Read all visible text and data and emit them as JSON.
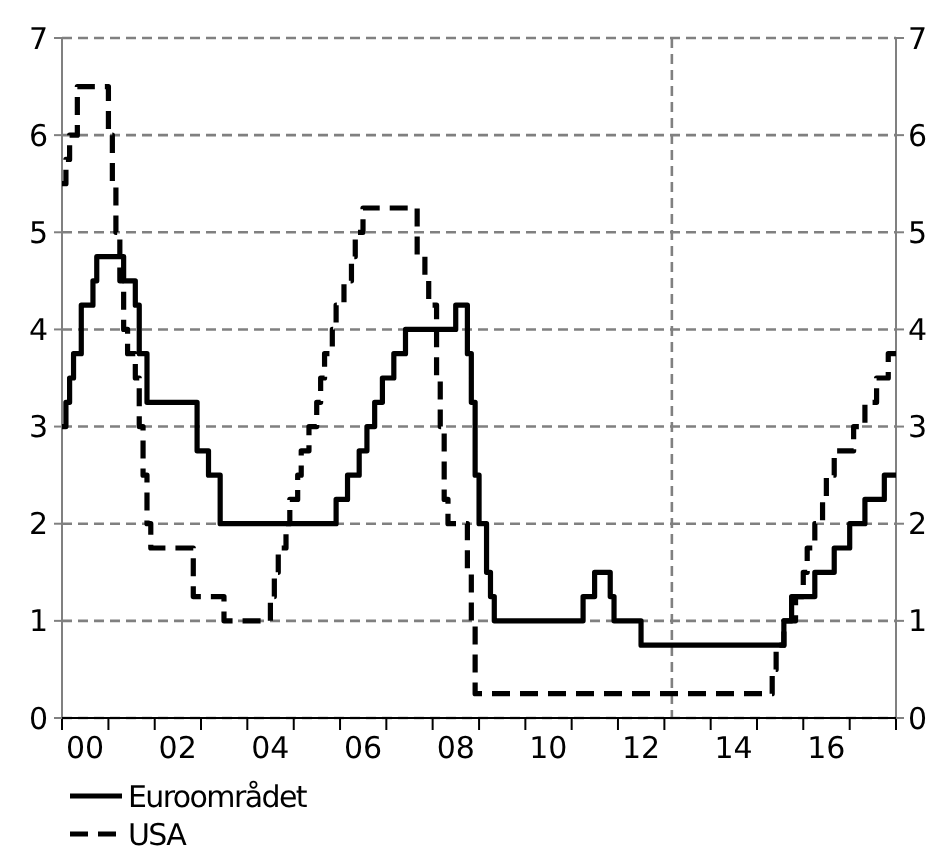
{
  "chart_data": {
    "type": "step",
    "xlim": [
      "2000-01-01",
      "2018-01-01"
    ],
    "xticks": [
      {
        "value": "2000-01-01",
        "label": null
      },
      {
        "value": "2000-07-01",
        "label": "00"
      },
      {
        "value": "2001-01-01",
        "label": null
      },
      {
        "value": "2002-01-01",
        "label": null
      },
      {
        "value": "2002-07-01",
        "label": "02"
      },
      {
        "value": "2003-01-01",
        "label": null
      },
      {
        "value": "2004-01-01",
        "label": null
      },
      {
        "value": "2004-07-01",
        "label": "04"
      },
      {
        "value": "2005-01-01",
        "label": null
      },
      {
        "value": "2006-01-01",
        "label": null
      },
      {
        "value": "2006-07-01",
        "label": "06"
      },
      {
        "value": "2007-01-01",
        "label": null
      },
      {
        "value": "2008-01-01",
        "label": null
      },
      {
        "value": "2008-07-01",
        "label": "08"
      },
      {
        "value": "2009-01-01",
        "label": null
      },
      {
        "value": "2010-01-01",
        "label": null
      },
      {
        "value": "2010-07-01",
        "label": "10"
      },
      {
        "value": "2011-01-01",
        "label": null
      },
      {
        "value": "2012-01-01",
        "label": null
      },
      {
        "value": "2012-07-01",
        "label": "12"
      },
      {
        "value": "2013-01-01",
        "label": null
      },
      {
        "value": "2014-01-01",
        "label": null
      },
      {
        "value": "2014-07-01",
        "label": "14"
      },
      {
        "value": "2015-01-01",
        "label": null
      },
      {
        "value": "2016-01-01",
        "label": null
      },
      {
        "value": "2016-07-01",
        "label": "16"
      },
      {
        "value": "2017-01-01",
        "label": null
      },
      {
        "value": "2018-01-01",
        "label": null
      }
    ],
    "ylim": [
      0,
      7
    ],
    "yticks": [
      0,
      1,
      2,
      3,
      4,
      5,
      6,
      7
    ],
    "y2lim": [
      0,
      7
    ],
    "y2ticks": [
      0,
      1,
      2,
      3,
      4,
      5,
      6,
      7
    ],
    "grid": "y",
    "legend": "bottom",
    "ref_lines": [
      {
        "axis": "x",
        "value": "2013-03",
        "label": null,
        "color": "#808080",
        "line_style": "dashed"
      }
    ],
    "series": [
      {
        "name": "Euroområdet",
        "color": "#000000",
        "line_style": "solid",
        "x": [
          "2000-01",
          "2000-02",
          "2000-03",
          "2000-04",
          "2000-06",
          "2000-09",
          "2000-10",
          "2001-05",
          "2001-08",
          "2001-09",
          "2001-11",
          "2002-12",
          "2003-03",
          "2003-06",
          "2005-12",
          "2006-03",
          "2006-06",
          "2006-08",
          "2006-10",
          "2006-12",
          "2007-03",
          "2007-06",
          "2008-07",
          "2008-10",
          "2008-11",
          "2008-12",
          "2009-01",
          "2009-03",
          "2009-04",
          "2009-05",
          "2011-04",
          "2011-07",
          "2011-11",
          "2011-12",
          "2012-07",
          "2015-08",
          "2015-10",
          "2016-04",
          "2016-09",
          "2017-01",
          "2017-05",
          "2017-10",
          "2018-01"
        ],
        "values": [
          3,
          3.25,
          3.5,
          3.75,
          4.25,
          4.5,
          4.75,
          4.5,
          4.25,
          3.75,
          3.25,
          2.75,
          2.5,
          2,
          2.25,
          2.5,
          2.75,
          3,
          3.25,
          3.5,
          3.75,
          4,
          4.25,
          3.75,
          3.25,
          2.5,
          2,
          1.5,
          1.25,
          1,
          1.25,
          1.5,
          1.25,
          1,
          0.75,
          1,
          1.25,
          1.5,
          1.75,
          2,
          2.25,
          2.5,
          2.5
        ]
      },
      {
        "name": "USA",
        "color": "#000000",
        "line_style": "dashed",
        "x": [
          "2000-01",
          "2000-02",
          "2000-03",
          "2000-05",
          "2001-01",
          "2001-02",
          "2001-03",
          "2001-04",
          "2001-05",
          "2001-06",
          "2001-08",
          "2001-09",
          "2001-10",
          "2001-11",
          "2001-12",
          "2002-11",
          "2003-07",
          "2004-07",
          "2004-08",
          "2004-09",
          "2004-11",
          "2004-12",
          "2005-02",
          "2005-03",
          "2005-05",
          "2005-07",
          "2005-08",
          "2005-09",
          "2005-11",
          "2005-12",
          "2006-02",
          "2006-04",
          "2006-05",
          "2006-07",
          "2007-09",
          "2007-11",
          "2007-12",
          "2008-02",
          "2008-03",
          "2008-04",
          "2008-05",
          "2008-10",
          "2008-11",
          "2008-12",
          "2015-05",
          "2015-06",
          "2015-08",
          "2015-11",
          "2016-01",
          "2016-02",
          "2016-04",
          "2016-06",
          "2016-07",
          "2016-09",
          "2017-02",
          "2017-05",
          "2017-08",
          "2017-11",
          "2018-01"
        ],
        "values": [
          5.5,
          5.75,
          6,
          6.5,
          6,
          5.5,
          5,
          4.5,
          4,
          3.75,
          3.5,
          3,
          2.5,
          2,
          1.75,
          1.25,
          1,
          1.25,
          1.5,
          1.75,
          2,
          2.25,
          2.5,
          2.75,
          3,
          3.25,
          3.5,
          3.75,
          4,
          4.25,
          4.5,
          4.75,
          5,
          5.25,
          4.75,
          4.5,
          4.25,
          3.5,
          3,
          2.25,
          2,
          1.5,
          1,
          0.25,
          0.5,
          0.75,
          1,
          1.25,
          1.5,
          1.75,
          2,
          2.25,
          2.5,
          2.75,
          3,
          3.25,
          3.5,
          3.75,
          3.75
        ]
      }
    ]
  }
}
